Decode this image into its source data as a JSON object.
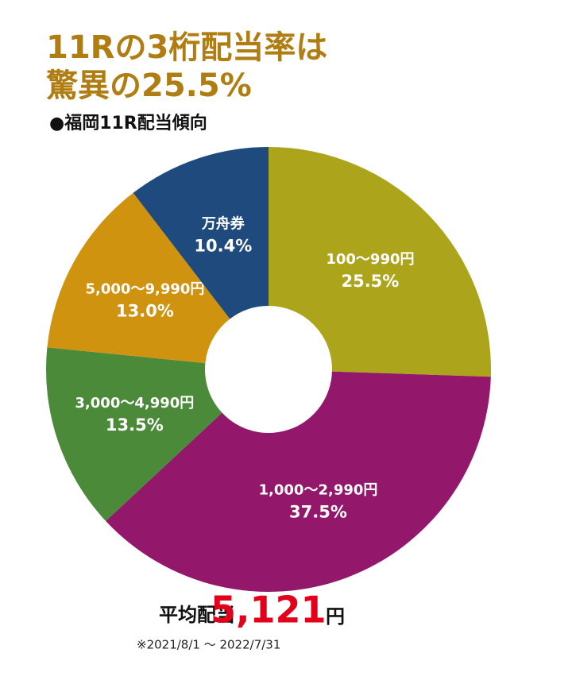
{
  "chart_data": {
    "type": "donut",
    "title_lines": [
      "11Rの3桁配当率は",
      "驚異の25.5%"
    ],
    "subtitle": "●福岡11R配当傾向",
    "categories": [
      "100〜990円",
      "1,000〜2,990円",
      "3,000〜4,990円",
      "5,000〜9,990円",
      "万舟券"
    ],
    "values": [
      25.5,
      37.5,
      13.5,
      13.0,
      10.4
    ],
    "value_labels": [
      "25.5%",
      "37.5%",
      "13.5%",
      "13.0%",
      "10.4%"
    ],
    "colors": [
      "#aca51c",
      "#93186b",
      "#4a8a38",
      "#d0930f",
      "#1e4a7d"
    ],
    "average": {
      "label": "平均配当",
      "value": 5121,
      "value_label": "5,121",
      "unit": "円"
    },
    "note": "※2021/8/1 〜 2022/7/31"
  }
}
